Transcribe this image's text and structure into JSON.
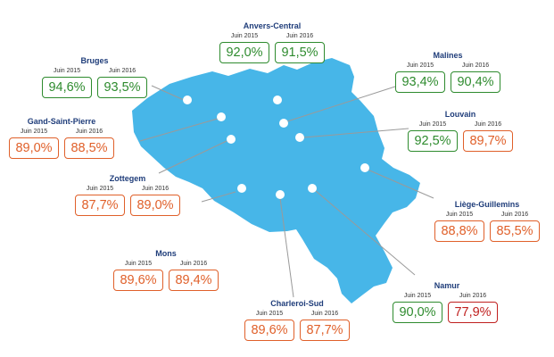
{
  "legend": {
    "year_2015": "Juin 2015",
    "year_2016": "Juin 2016"
  },
  "colors": {
    "map": "#47b6e8",
    "connector": "#9a9a9a",
    "dot": "#ffffff",
    "station_name": "#1f3d7a",
    "good": "#2e8b2e",
    "medium": "#e0602a",
    "bad": "#c0201f"
  },
  "stations": [
    {
      "name": "Anvers-Central",
      "v2015": "92,0%",
      "v2016": "91,5%",
      "s2015": "good",
      "s2016": "good"
    },
    {
      "name": "Bruges",
      "v2015": "94,6%",
      "v2016": "93,5%",
      "s2015": "good",
      "s2016": "good"
    },
    {
      "name": "Malines",
      "v2015": "93,4%",
      "v2016": "90,4%",
      "s2015": "good",
      "s2016": "good"
    },
    {
      "name": "Gand-Saint-Pierre",
      "v2015": "89,0%",
      "v2016": "88,5%",
      "s2015": "medium",
      "s2016": "medium"
    },
    {
      "name": "Louvain",
      "v2015": "92,5%",
      "v2016": "89,7%",
      "s2015": "good",
      "s2016": "medium"
    },
    {
      "name": "Zottegem",
      "v2015": "87,7%",
      "v2016": "89,0%",
      "s2015": "medium",
      "s2016": "medium"
    },
    {
      "name": "Liège-Guillemins",
      "v2015": "88,8%",
      "v2016": "85,5%",
      "s2015": "medium",
      "s2016": "medium"
    },
    {
      "name": "Mons",
      "v2015": "89,6%",
      "v2016": "89,4%",
      "s2015": "medium",
      "s2016": "medium"
    },
    {
      "name": "Charleroi-Sud",
      "v2015": "89,6%",
      "v2016": "87,7%",
      "s2015": "medium",
      "s2016": "medium"
    },
    {
      "name": "Namur",
      "v2015": "90,0%",
      "v2016": "77,9%",
      "s2015": "good",
      "s2016": "bad"
    }
  ]
}
